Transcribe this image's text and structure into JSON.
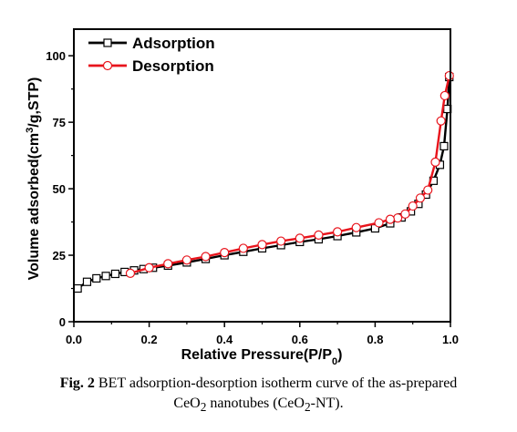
{
  "chart_data": {
    "type": "line",
    "xlabel": "Relative Pressure(P/P0)",
    "ylabel": "Volume adsorbed(cm3/g,STP)",
    "xlim": [
      0.0,
      1.0
    ],
    "ylim": [
      0,
      110
    ],
    "x_ticks": [
      "0.0",
      "0.2",
      "0.4",
      "0.6",
      "0.8",
      "1.0"
    ],
    "y_ticks": [
      "0",
      "25",
      "50",
      "75",
      "100"
    ],
    "legend_position": "top-left",
    "grid": false,
    "series": [
      {
        "name": "Adsorption",
        "color": "#000000",
        "marker": "square",
        "x": [
          0.01,
          0.035,
          0.06,
          0.085,
          0.11,
          0.135,
          0.16,
          0.185,
          0.21,
          0.25,
          0.3,
          0.35,
          0.4,
          0.45,
          0.5,
          0.55,
          0.6,
          0.65,
          0.7,
          0.75,
          0.8,
          0.84,
          0.87,
          0.895,
          0.915,
          0.935,
          0.955,
          0.972,
          0.983,
          0.992,
          0.997
        ],
        "y": [
          12.5,
          15.0,
          16.3,
          17.2,
          18.0,
          18.7,
          19.3,
          19.8,
          20.3,
          21.1,
          22.3,
          23.6,
          25.0,
          26.3,
          27.6,
          28.8,
          30.0,
          31.0,
          32.2,
          33.6,
          35.1,
          37.0,
          39.2,
          41.5,
          44.3,
          47.8,
          53.0,
          59.0,
          66.0,
          80.0,
          92.0
        ]
      },
      {
        "name": "Desorption",
        "color": "#e8141c",
        "marker": "circle",
        "x": [
          0.997,
          0.985,
          0.975,
          0.96,
          0.94,
          0.92,
          0.9,
          0.88,
          0.86,
          0.84,
          0.81,
          0.75,
          0.7,
          0.65,
          0.6,
          0.55,
          0.5,
          0.45,
          0.4,
          0.35,
          0.3,
          0.25,
          0.2,
          0.15
        ],
        "y": [
          92.5,
          85.0,
          75.5,
          60.0,
          49.5,
          46.5,
          43.5,
          40.5,
          39.0,
          38.5,
          37.2,
          35.4,
          33.8,
          32.6,
          31.4,
          30.3,
          29.0,
          27.6,
          26.0,
          24.5,
          23.2,
          21.8,
          20.3,
          18.2
        ]
      }
    ]
  },
  "caption": {
    "label": "Fig. 2",
    "line1": "BET adsorption-desorption isotherm curve of the as-prepared",
    "line2": "CeO2 nanotubes (CeO2-NT)."
  }
}
